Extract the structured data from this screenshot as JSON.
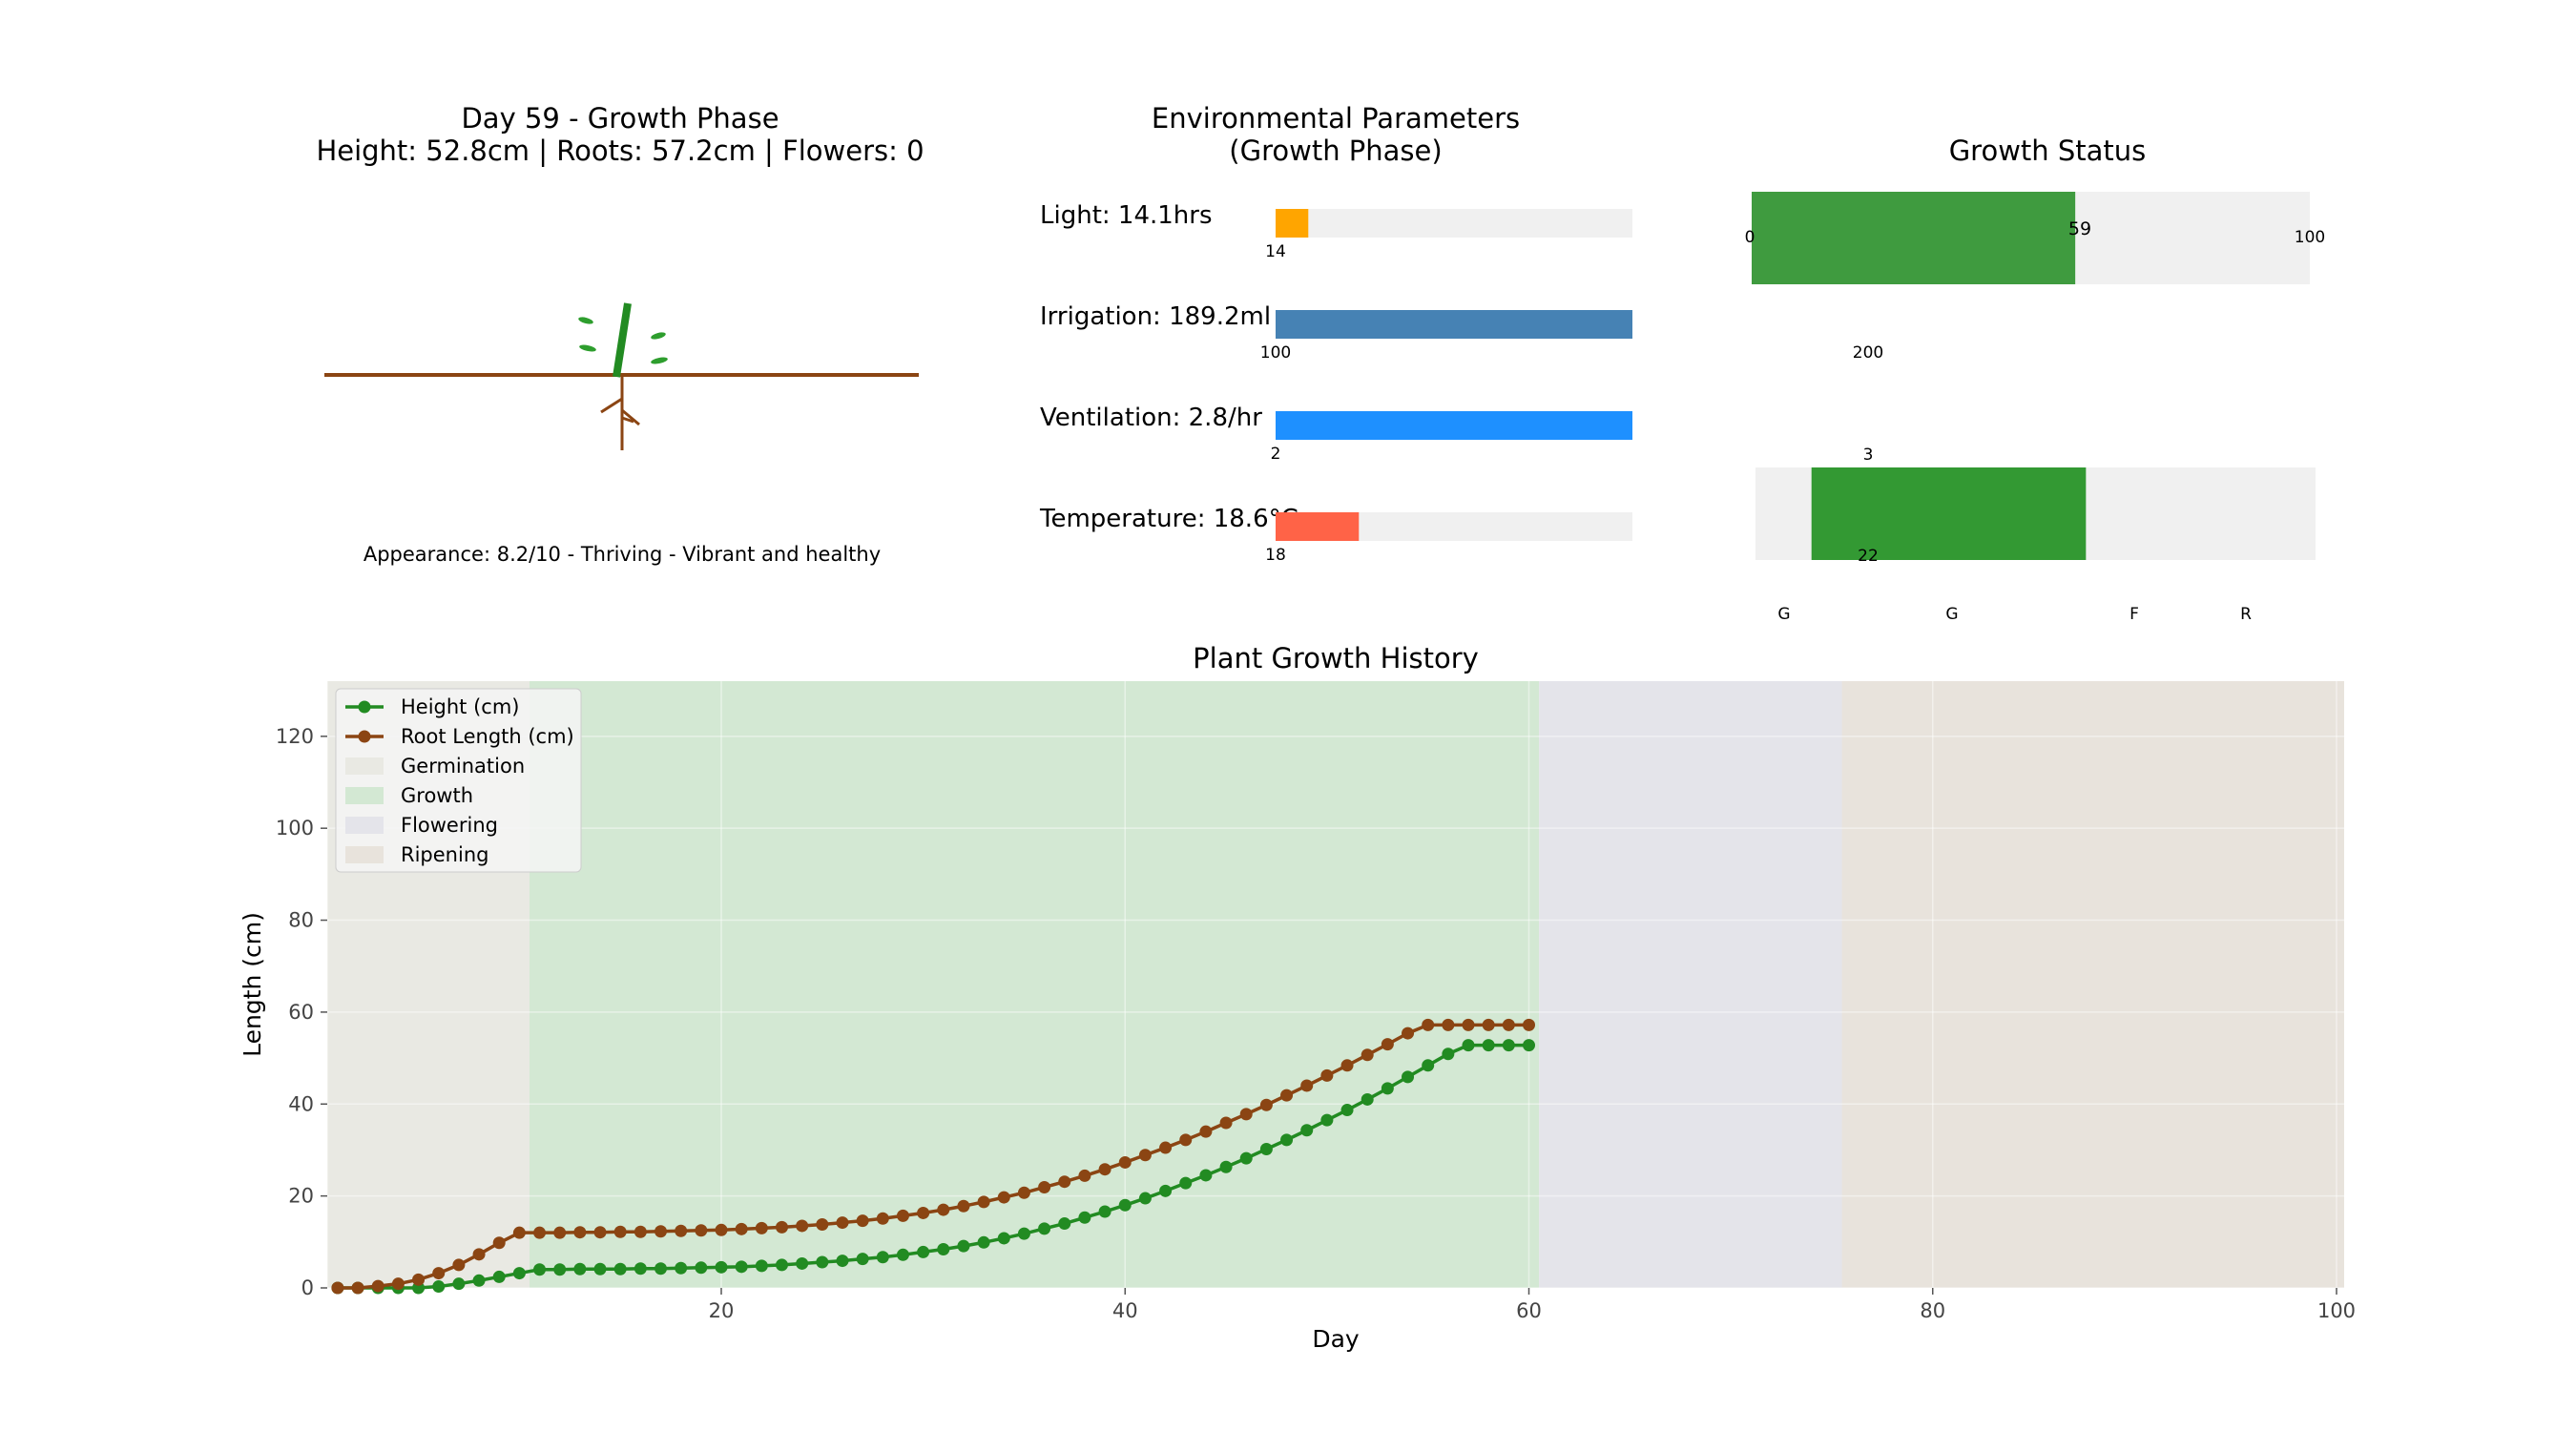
{
  "plant_panel": {
    "title_line1": "Day 59 - Growth Phase",
    "title_line2": "Height: 52.8cm | Roots: 57.2cm | Flowers: 0",
    "appearance": "Appearance: 8.2/10 - Thriving - Vibrant and healthy"
  },
  "env_panel": {
    "title_line1": "Environmental Parameters",
    "title_line2": "(Growth Phase)",
    "params": [
      {
        "label": "Light: 14.1hrs",
        "tick": "14",
        "value": 14.1,
        "min": 13,
        "max": 25,
        "color": "#FFA500"
      },
      {
        "label": "Irrigation: 189.2ml",
        "tick": "100",
        "value": 189.2,
        "min": 100,
        "max": 150,
        "color": "#4682B4"
      },
      {
        "label": "Ventilation: 2.8/hr",
        "tick": "2",
        "value": 2.8,
        "min": 2,
        "max": 2.6,
        "color": "#1E90FF"
      },
      {
        "label": "Temperature: 18.6°C",
        "tick": "18",
        "value": 18.6,
        "min": 17.2,
        "max": 23.2,
        "color": "#FF6347"
      }
    ]
  },
  "status_panel": {
    "title": "Growth Status",
    "progress": {
      "value": 59,
      "max": 100,
      "label_min": "0",
      "label_value": "59",
      "label_max": "100",
      "color": "#3f9b3f"
    },
    "stray_labels": [
      "200",
      "3",
      "22"
    ],
    "phase_bar": {
      "start": 0.1,
      "end": 0.6,
      "color": "#339933"
    },
    "phase_labels": [
      "G",
      "G",
      "F",
      "R"
    ]
  },
  "colors": {
    "height": "#228B22",
    "roots": "#8B4513",
    "germination": "#e9e9e3",
    "growth": "#d3e8d3",
    "flowering": "#e4e4ea",
    "ripening": "#e8e3dc",
    "track": "#f0f0f0"
  },
  "chart_data": {
    "type": "line",
    "title": "Plant Growth History",
    "xlabel": "Day",
    "ylabel": "Length (cm)",
    "xlim": [
      0,
      100
    ],
    "ylim": [
      0,
      132
    ],
    "xticks": [
      20,
      40,
      60,
      80,
      100
    ],
    "yticks": [
      0,
      20,
      40,
      60,
      80,
      100,
      120
    ],
    "grid": true,
    "legend_position": "top-left",
    "phases": [
      {
        "name": "Germination",
        "start": 0,
        "end": 10
      },
      {
        "name": "Growth",
        "start": 10,
        "end": 60
      },
      {
        "name": "Flowering",
        "start": 60,
        "end": 75
      },
      {
        "name": "Ripening",
        "start": 75,
        "end": 100
      }
    ],
    "x": [
      0,
      1,
      2,
      3,
      4,
      5,
      6,
      7,
      8,
      9,
      10,
      11,
      12,
      13,
      14,
      15,
      16,
      17,
      18,
      19,
      20,
      21,
      22,
      23,
      24,
      25,
      26,
      27,
      28,
      29,
      30,
      31,
      32,
      33,
      34,
      35,
      36,
      37,
      38,
      39,
      40,
      41,
      42,
      43,
      44,
      45,
      46,
      47,
      48,
      49,
      50,
      51,
      52,
      53,
      54,
      55,
      56,
      57,
      58,
      59
    ],
    "series": [
      {
        "name": "Height (cm)",
        "values": [
          0,
          0,
          0,
          0,
          0,
          0.3,
          0.9,
          1.6,
          2.4,
          3.2,
          4.0,
          4.0,
          4.1,
          4.1,
          4.1,
          4.2,
          4.2,
          4.3,
          4.4,
          4.5,
          4.6,
          4.8,
          5.0,
          5.3,
          5.6,
          5.9,
          6.3,
          6.7,
          7.2,
          7.8,
          8.4,
          9.1,
          9.9,
          10.8,
          11.8,
          12.9,
          14.0,
          15.3,
          16.6,
          18.0,
          19.5,
          21.1,
          22.8,
          24.5,
          26.3,
          28.2,
          30.2,
          32.2,
          34.3,
          36.5,
          38.7,
          41.0,
          43.4,
          45.9,
          48.4,
          50.9,
          52.8,
          52.8,
          52.8,
          52.8
        ]
      },
      {
        "name": "Root Length (cm)",
        "values": [
          0,
          0,
          0.4,
          0.9,
          1.8,
          3.2,
          5.0,
          7.3,
          9.8,
          12.0,
          12.0,
          12.0,
          12.1,
          12.1,
          12.2,
          12.2,
          12.3,
          12.4,
          12.5,
          12.6,
          12.8,
          13.0,
          13.2,
          13.5,
          13.8,
          14.2,
          14.6,
          15.1,
          15.7,
          16.3,
          17.0,
          17.8,
          18.7,
          19.7,
          20.7,
          21.9,
          23.1,
          24.4,
          25.8,
          27.3,
          28.9,
          30.5,
          32.2,
          34.0,
          35.9,
          37.8,
          39.8,
          41.9,
          44.0,
          46.2,
          48.4,
          50.7,
          53.0,
          55.4,
          57.2,
          57.2,
          57.2,
          57.2,
          57.2,
          57.2
        ]
      }
    ]
  }
}
